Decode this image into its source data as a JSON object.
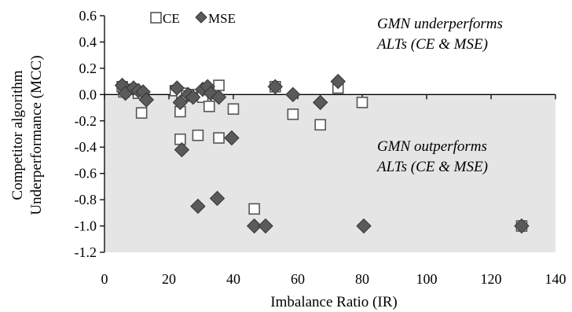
{
  "chart_data": {
    "type": "scatter",
    "title": "",
    "xlabel": "Imbalance Ratio (IR)",
    "ylabel": "Competitor algorithm Underperformance (MCC)",
    "ylabel_lines": [
      "Competitor algorithm",
      "Underperformance (MCC)"
    ],
    "xlim": [
      0,
      140
    ],
    "ylim": [
      -1.2,
      0.6
    ],
    "x_ticks": [
      0,
      20,
      40,
      60,
      80,
      100,
      120,
      140
    ],
    "y_ticks": [
      0.6,
      0.4,
      0.2,
      0.0,
      -0.2,
      -0.4,
      -0.6,
      -0.8,
      -1.0,
      -1.2
    ],
    "x_tick_labels": [
      "0",
      "20",
      "40",
      "60",
      "80",
      "100",
      "120",
      "140"
    ],
    "y_tick_labels": [
      "0.6",
      "0.4",
      "0.2",
      "0.0",
      "-0.2",
      "-0.4",
      "-0.6",
      "-0.8",
      "-1.0",
      "-1.2"
    ],
    "grid": false,
    "legend_position": "top-left",
    "shaded_region": {
      "y_from": -1.2,
      "y_to": 0.0,
      "color": "#e5e5e5"
    },
    "annotations": [
      {
        "lines": [
          "GMN underperforms",
          "ALTs (CE & MSE)"
        ]
      },
      {
        "lines": [
          "GMN outperforms",
          "ALTs (CE & MSE)"
        ]
      }
    ],
    "series": [
      {
        "name": "CE",
        "marker": "open-square",
        "color": "#555555",
        "points": [
          [
            5.5,
            0.06
          ],
          [
            6,
            0.02
          ],
          [
            9,
            0.04
          ],
          [
            10.5,
            0.01
          ],
          [
            11.5,
            -0.14
          ],
          [
            22,
            0.03
          ],
          [
            23.5,
            -0.13
          ],
          [
            23.5,
            -0.34
          ],
          [
            24,
            0.01
          ],
          [
            25.5,
            -0.01
          ],
          [
            27,
            0.0
          ],
          [
            29,
            -0.31
          ],
          [
            30.5,
            -0.02
          ],
          [
            32.5,
            -0.09
          ],
          [
            35.5,
            0.07
          ],
          [
            35.5,
            -0.33
          ],
          [
            40,
            -0.11
          ],
          [
            46.5,
            -0.87
          ],
          [
            53,
            0.06
          ],
          [
            58.5,
            -0.15
          ],
          [
            67,
            -0.23
          ],
          [
            72.5,
            0.05
          ],
          [
            80,
            -0.06
          ],
          [
            129.5,
            -1.0
          ]
        ]
      },
      {
        "name": "MSE",
        "marker": "filled-diamond",
        "color": "#5a5a5a",
        "points": [
          [
            5.5,
            0.07
          ],
          [
            6.5,
            0.01
          ],
          [
            9,
            0.05
          ],
          [
            10.5,
            0.03
          ],
          [
            12,
            0.02
          ],
          [
            13,
            -0.04
          ],
          [
            22.5,
            0.05
          ],
          [
            23.5,
            -0.06
          ],
          [
            24,
            -0.42
          ],
          [
            26,
            0.0
          ],
          [
            27.5,
            -0.02
          ],
          [
            29,
            -0.85
          ],
          [
            30.5,
            0.04
          ],
          [
            32,
            0.06
          ],
          [
            33,
            0.01
          ],
          [
            35,
            -0.79
          ],
          [
            35.5,
            -0.02
          ],
          [
            39.5,
            -0.33
          ],
          [
            46.5,
            -1.0
          ],
          [
            50,
            -1.0
          ],
          [
            53,
            0.06
          ],
          [
            58.5,
            0.0
          ],
          [
            67,
            -0.06
          ],
          [
            72.5,
            0.1
          ],
          [
            80.5,
            -1.0
          ],
          [
            129.5,
            -1.0
          ]
        ]
      }
    ]
  }
}
